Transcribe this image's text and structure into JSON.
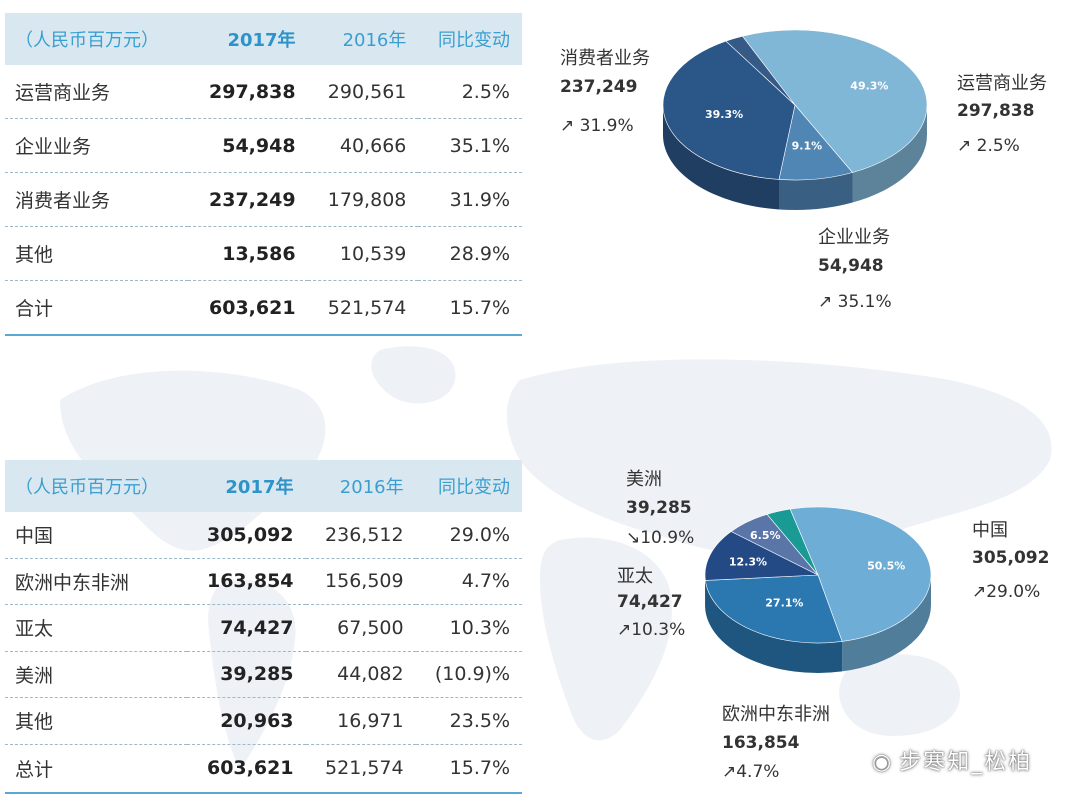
{
  "tables": [
    {
      "headers": [
        "（人民币百万元）",
        "2017年",
        "2016年",
        "同比变动"
      ],
      "rows": [
        [
          "运营商业务",
          "297,838",
          "290,561",
          "2.5%"
        ],
        [
          "企业业务",
          "54,948",
          "40,666",
          "35.1%"
        ],
        [
          "消费者业务",
          "237,249",
          "179,808",
          "31.9%"
        ],
        [
          "其他",
          "13,586",
          "10,539",
          "28.9%"
        ],
        [
          "合计",
          "603,621",
          "521,574",
          "15.7%"
        ]
      ]
    },
    {
      "headers": [
        "（人民币百万元）",
        "2017年",
        "2016年",
        "同比变动"
      ],
      "rows": [
        [
          "中国",
          "305,092",
          "236,512",
          "29.0%"
        ],
        [
          "欧洲中东非洲",
          "163,854",
          "156,509",
          "4.7%"
        ],
        [
          "亚太",
          "74,427",
          "67,500",
          "10.3%"
        ],
        [
          "美洲",
          "39,285",
          "44,082",
          "(10.9)%"
        ],
        [
          "其他",
          "20,963",
          "16,971",
          "23.5%"
        ],
        [
          "总计",
          "603,621",
          "521,574",
          "15.7%"
        ]
      ]
    }
  ],
  "chart_data": [
    {
      "type": "pie",
      "categories": [
        "运营商业务",
        "企业业务",
        "消费者业务",
        "其他"
      ],
      "values": [
        297838,
        54948,
        237249,
        13586
      ],
      "slice_labels": [
        "49.3%",
        "9.1%",
        "39.3%",
        ""
      ],
      "callouts": [
        {
          "name": "消费者业务",
          "value": "237,249",
          "change": "↗ 31.9%"
        },
        {
          "name": "运营商业务",
          "value": "297,838",
          "change": "↗ 2.5%"
        },
        {
          "name": "企业业务",
          "value": "54,948",
          "change": "↗ 35.1%"
        }
      ],
      "colors": [
        "#80b6d6",
        "#4f86b4",
        "#2b5688",
        "#355a85"
      ]
    },
    {
      "type": "pie",
      "categories": [
        "中国",
        "欧洲中东非洲",
        "亚太",
        "美洲",
        "其他"
      ],
      "values": [
        305092,
        163854,
        74427,
        39285,
        20963
      ],
      "slice_labels": [
        "50.5%",
        "27.1%",
        "12.3%",
        "6.5%",
        ""
      ],
      "callouts": [
        {
          "name": "美洲",
          "value": "39,285",
          "change": "↘10.9%"
        },
        {
          "name": "亚太",
          "value": "74,427",
          "change": "↗10.3%"
        },
        {
          "name": "中国",
          "value": "305,092",
          "change": "↗29.0%"
        },
        {
          "name": "欧洲中东非洲",
          "value": "163,854",
          "change": "↗4.7%"
        }
      ],
      "colors": [
        "#6eaed6",
        "#2b78b0",
        "#234a84",
        "#5a75a8",
        "#1a9a94"
      ]
    }
  ],
  "watermark": "步寒知_松柏"
}
